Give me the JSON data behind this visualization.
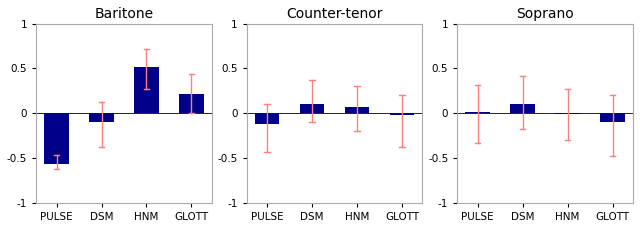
{
  "panels": [
    {
      "title": "Baritone",
      "categories": [
        "PULSE",
        "DSM",
        "HNM",
        "GLOTT"
      ],
      "bar_values": [
        -0.57,
        -0.1,
        0.52,
        0.22
      ],
      "error_low": [
        -0.62,
        -0.38,
        0.27,
        0.0
      ],
      "error_high": [
        -0.47,
        0.12,
        0.72,
        0.44
      ]
    },
    {
      "title": "Counter-tenor",
      "categories": [
        "PULSE",
        "DSM",
        "HNM",
        "GLOTT"
      ],
      "bar_values": [
        -0.12,
        0.1,
        0.07,
        -0.02
      ],
      "error_low": [
        -0.43,
        -0.1,
        -0.2,
        -0.38
      ],
      "error_high": [
        0.1,
        0.37,
        0.3,
        0.2
      ]
    },
    {
      "title": "Soprano",
      "categories": [
        "PULSE",
        "DSM",
        "HNM",
        "GLOTT"
      ],
      "bar_values": [
        0.01,
        0.1,
        -0.01,
        -0.1
      ],
      "error_low": [
        -0.33,
        -0.18,
        -0.3,
        -0.48
      ],
      "error_high": [
        0.32,
        0.42,
        0.27,
        0.2
      ]
    }
  ],
  "bar_color": "#00008B",
  "error_color": "#FF8080",
  "ylim": [
    -1,
    1
  ],
  "yticks": [
    -1,
    -0.5,
    0,
    0.5,
    1
  ],
  "ytick_labels": [
    "-1",
    "-0.5",
    "0",
    "0.5",
    "1"
  ],
  "bar_width": 0.55,
  "background_color": "#ffffff",
  "title_fontsize": 10,
  "tick_fontsize": 7.5,
  "spine_color": "#aaaaaa"
}
